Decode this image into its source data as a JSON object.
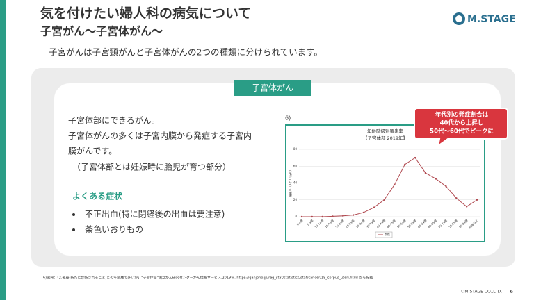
{
  "header": {
    "title": "気を付けたい婦人科の病気について",
    "subtitle": "子宮がん〜子宮体がん〜"
  },
  "logo": "M.STAGE",
  "intro": "子宮がんは子宮頸がんと子宮体がんの2つの種類に分けられています。",
  "section": {
    "label": "子宮体がん",
    "body": [
      "子宮体部にできるがん。",
      "子宮体がんの多くは子宮内膜から発症する子宮内",
      "膜がんです。",
      "（子宮体部とは妊娠時に胎児が育つ部分）"
    ],
    "symptoms_title": "よくある症状",
    "symptoms": [
      "不正出血(特に閉経後の出血は要注意)",
      "茶色いおりもの"
    ]
  },
  "chart_data": {
    "type": "line",
    "note_ref": "6)",
    "title": "年齢階級別罹患率",
    "subtitle": "【子宮体部 2019年】",
    "y_label": "罹患率（人口10万対）",
    "categories": [
      "0-4歳",
      "5-9歳",
      "10-14歳",
      "15-19歳",
      "20-24歳",
      "25-29歳",
      "30-34歳",
      "35-39歳",
      "40-44歳",
      "45-49歳",
      "50-54歳",
      "55-59歳",
      "60-64歳",
      "65-69歳",
      "70-74歳",
      "75-79歳",
      "80-84歳",
      "85歳以上"
    ],
    "series": [
      {
        "name": "女性",
        "color": "#b0484f",
        "values": [
          0,
          0,
          0,
          0.5,
          1,
          2,
          5,
          11,
          20,
          38,
          62,
          70,
          52,
          45,
          36,
          22,
          12,
          20
        ]
      }
    ],
    "ylim": [
      0,
      80
    ],
    "yticks": [
      0,
      20,
      40,
      60,
      80
    ]
  },
  "callout": [
    "年代別の発症割合は",
    "40代から上昇し",
    "50代〜60代でピークに"
  ],
  "footnote": "6)出典：「2.罹患(新たに診断されること)どの年齢層で多いか」\"子宮体部\"国立がん研究センターがん情報サービス.2019年. https://ganjoho.jp/reg_stat/statistics/stat/cancer/18_corpus_uteri.html から転載",
  "copyright": "©M.STAGE CO.,LTD.",
  "page": "6"
}
